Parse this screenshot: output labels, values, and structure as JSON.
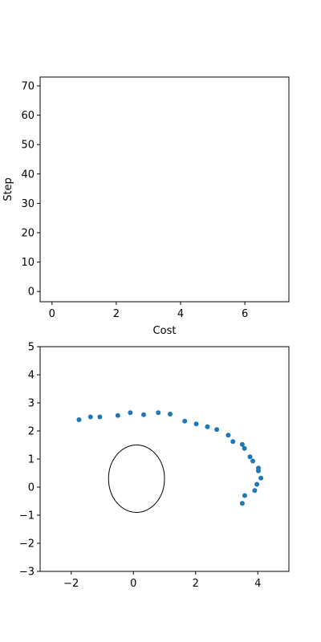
{
  "chart_data": [
    {
      "type": "line",
      "title": "",
      "xlabel": "Cost",
      "ylabel": "Step",
      "xlim": [
        -0.37,
        7.37
      ],
      "ylim": [
        -3.5,
        73.0
      ],
      "xticks": [
        0,
        2,
        4,
        6
      ],
      "yticks": [
        0,
        10,
        20,
        30,
        40,
        50,
        60,
        70
      ],
      "series": [],
      "grid": false
    },
    {
      "type": "scatter",
      "title": "",
      "xlabel": "",
      "ylabel": "",
      "xlim": [
        -3,
        5
      ],
      "ylim": [
        -3,
        5
      ],
      "xticks": [
        -2,
        0,
        2,
        4
      ],
      "yticks": [
        -3,
        -2,
        -1,
        0,
        1,
        2,
        3,
        4,
        5
      ],
      "grid": false,
      "marker_color": "#1f77b4",
      "points": [
        [
          -1.75,
          2.4
        ],
        [
          -1.38,
          2.5
        ],
        [
          -1.08,
          2.5
        ],
        [
          -0.5,
          2.55
        ],
        [
          -0.1,
          2.65
        ],
        [
          0.33,
          2.58
        ],
        [
          0.8,
          2.65
        ],
        [
          1.18,
          2.6
        ],
        [
          1.65,
          2.35
        ],
        [
          2.02,
          2.25
        ],
        [
          2.38,
          2.15
        ],
        [
          2.68,
          2.05
        ],
        [
          3.05,
          1.85
        ],
        [
          3.2,
          1.62
        ],
        [
          3.5,
          1.52
        ],
        [
          3.57,
          1.38
        ],
        [
          3.75,
          1.08
        ],
        [
          3.84,
          0.93
        ],
        [
          4.02,
          0.68
        ],
        [
          4.02,
          0.58
        ],
        [
          4.1,
          0.32
        ],
        [
          3.97,
          0.1
        ],
        [
          3.9,
          -0.12
        ],
        [
          3.58,
          -0.3
        ],
        [
          3.5,
          -0.58
        ]
      ],
      "circle": {
        "cx": 0.1,
        "cy": 0.3,
        "rx": 0.9,
        "ry": 1.2,
        "color": "#000000"
      }
    }
  ]
}
